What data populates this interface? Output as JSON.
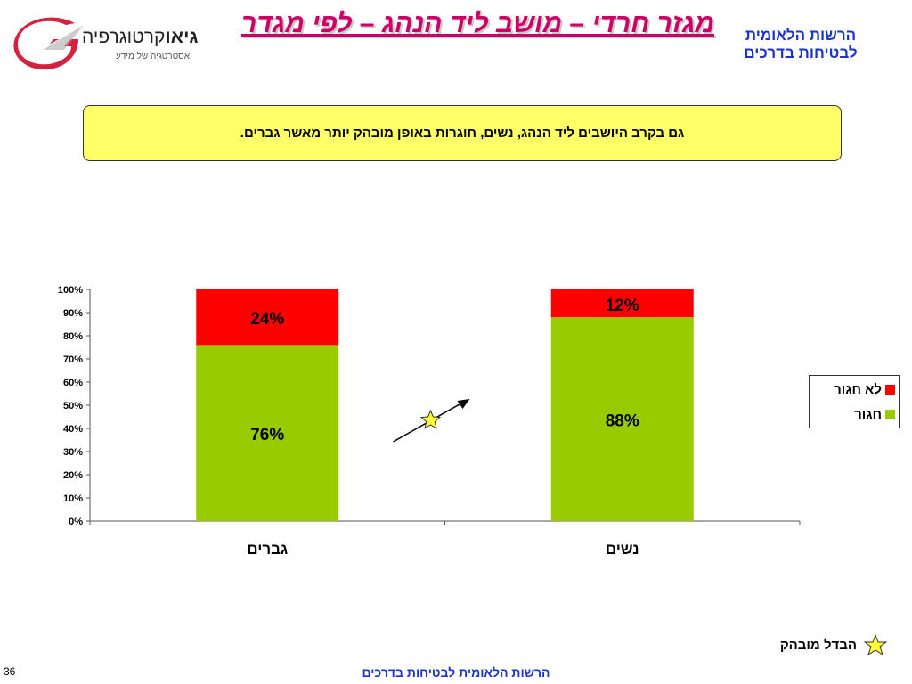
{
  "header": {
    "title": "מגזר חרדי – מושב ליד הנהג – לפי מגדר",
    "org_name": "הרשות הלאומית לבטיחות בדרכים",
    "brand_bold": "גיאו",
    "brand_rest": "קרטוגרפיה",
    "brand_tagline": "אסטרטגיה של מידע"
  },
  "callout": {
    "text": "גם  בקרב היושבים ליד הנהג, נשים, חוגרות באופן מובהק יותר מאשר גברים."
  },
  "chart_data": {
    "type": "bar",
    "stacked": true,
    "categories": [
      "גברים",
      "נשים"
    ],
    "series": [
      {
        "name": "חגור",
        "values": [
          76,
          88
        ],
        "color": "#99cc00"
      },
      {
        "name": "לא חגור",
        "values": [
          24,
          12
        ],
        "color": "#ff0000"
      }
    ],
    "data_labels": [
      [
        "76%",
        "88%"
      ],
      [
        "24%",
        "12%"
      ]
    ],
    "ylim": [
      0,
      100
    ],
    "yticks": [
      "0%",
      "10%",
      "20%",
      "30%",
      "40%",
      "50%",
      "60%",
      "70%",
      "80%",
      "90%",
      "100%"
    ],
    "legend_position": "right",
    "grid": false,
    "significance_marker": "star"
  },
  "legend": {
    "items": [
      {
        "label": "לא חגור",
        "color": "#ff0000"
      },
      {
        "label": "חגור",
        "color": "#99cc00"
      }
    ]
  },
  "notes": {
    "star_label": "הבדל מובהק"
  },
  "footer": {
    "org": "הרשות הלאומית לבטיחות בדרכים",
    "page_number": "36"
  }
}
